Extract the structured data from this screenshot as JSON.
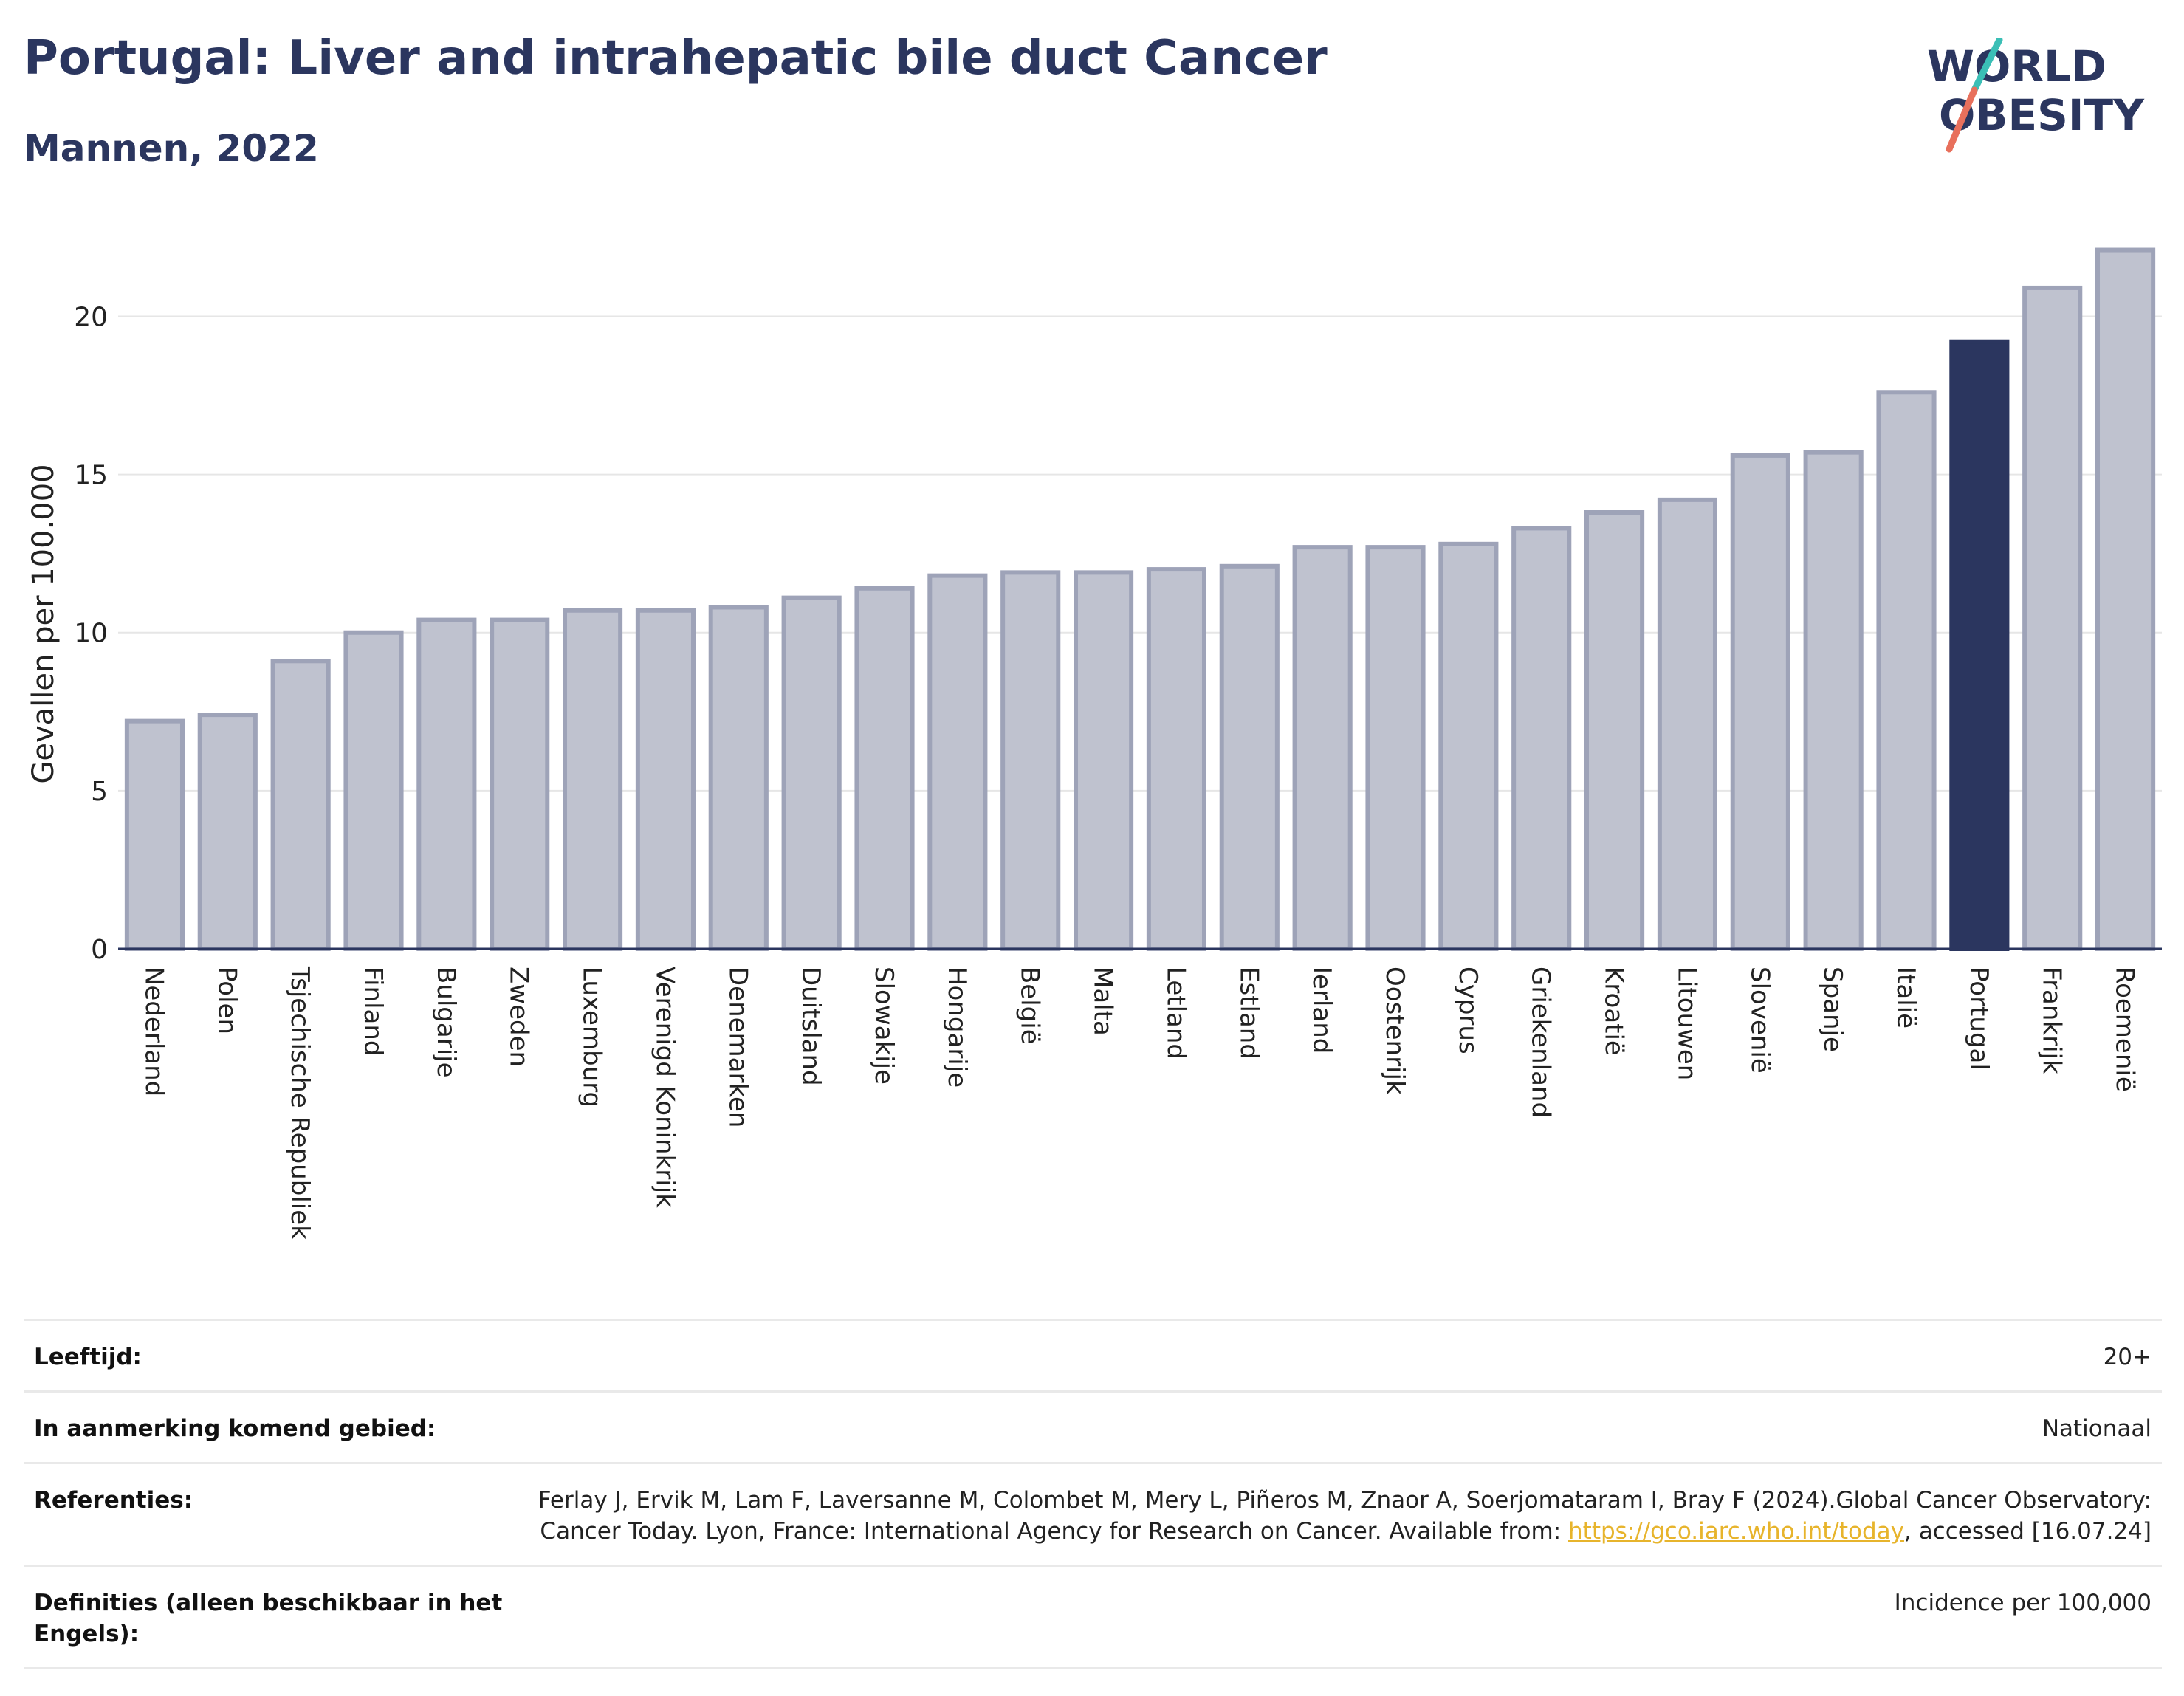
{
  "header": {
    "title": "Portugal: Liver and intrahepatic bile duct Cancer",
    "subtitle": "Mannen, 2022"
  },
  "logo": {
    "text_line1": "WORLD",
    "text_line2": "OBESITY",
    "colors": {
      "text": "#2b365f",
      "slash_top": "#3bbfb6",
      "slash_bottom": "#e8705c"
    }
  },
  "chart_data": {
    "type": "bar",
    "categories": [
      "Nederland",
      "Polen",
      "Tsjechische Republiek",
      "Finland",
      "Bulgarije",
      "Zweden",
      "Luxemburg",
      "Verenigd Koninkrijk",
      "Denemarken",
      "Duitsland",
      "Slowakije",
      "Hongarije",
      "België",
      "Malta",
      "Letland",
      "Estland",
      "Ierland",
      "Oostenrijk",
      "Cyprus",
      "Griekenland",
      "Kroatië",
      "Litouwen",
      "Slovenië",
      "Spanje",
      "Italië",
      "Portugal",
      "Frankrijk",
      "Roemenië"
    ],
    "values": [
      7.2,
      7.4,
      9.1,
      10.0,
      10.4,
      10.4,
      10.7,
      10.7,
      10.8,
      11.1,
      11.4,
      11.8,
      11.9,
      11.9,
      12.0,
      12.1,
      12.7,
      12.7,
      12.8,
      13.3,
      13.8,
      14.2,
      15.6,
      15.7,
      17.6,
      19.2,
      20.9,
      22.1
    ],
    "highlight": "Portugal",
    "ylabel": "Gevallen per 100.000",
    "xlabel": "",
    "ylim": [
      0,
      23
    ],
    "yticks": [
      0,
      5,
      10,
      15,
      20
    ],
    "grid": true,
    "colors": {
      "bar": "#bfc2cf",
      "bar_border": "#9ea3b8",
      "highlight": "#2b365f",
      "grid": "#e6e6e6",
      "axis": "#2b365f"
    }
  },
  "info": {
    "age_label": "Leeftijd:",
    "age_value": "20+",
    "area_label": "In aanmerking komend gebied:",
    "area_value": "Nationaal",
    "ref_label": "Referenties:",
    "ref_text_1": "Ferlay J, Ervik M, Lam F, Laversanne M, Colombet M, Mery L, Piñeros M, Znaor A, Soerjomataram I, Bray F (2024).Global Cancer Observatory: Cancer Today. Lyon, France: International Agency for Research on Cancer. Available from: ",
    "ref_link": "https://gco.iarc.who.int/today",
    "ref_text_2": ", accessed [16.07.24]",
    "def_label": "Definities (alleen beschikbaar in het Engels):",
    "def_value": "Incidence per 100,000"
  }
}
